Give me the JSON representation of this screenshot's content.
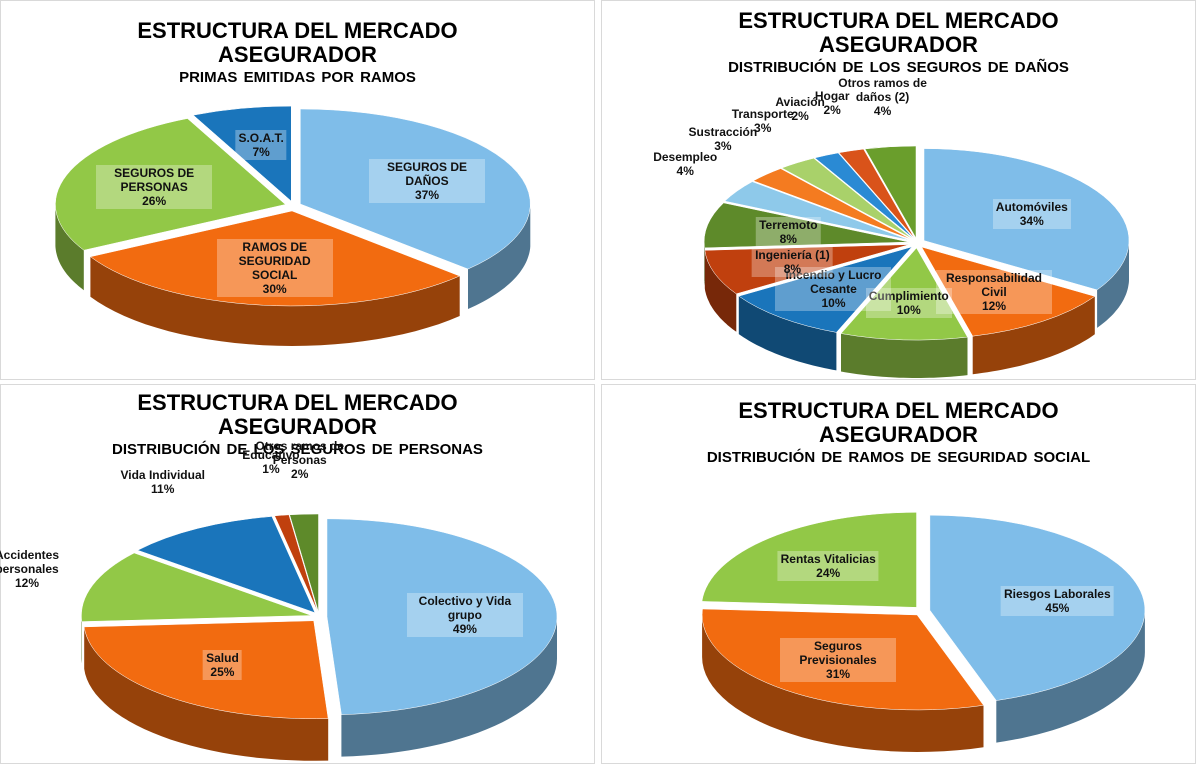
{
  "chart_data": [
    {
      "type": "pie",
      "title": "ESTRUCTURA DEL MERCADO ASEGURADOR",
      "subtitle": "PRIMAS EMITIDAS POR RAMOS",
      "categories": [
        "SEGUROS DE DAÑOS",
        "RAMOS DE SEGURIDAD SOCIAL",
        "SEGUROS DE PERSONAS",
        "S.O.A.T."
      ],
      "values": [
        37,
        30,
        26,
        7
      ],
      "value_labels": [
        "37%",
        "30%",
        "26%",
        "7%"
      ],
      "colors": [
        "#7fbde9",
        "#f26b10",
        "#92c847",
        "#1a75bb"
      ]
    },
    {
      "type": "pie",
      "title": "ESTRUCTURA DEL MERCADO ASEGURADOR",
      "subtitle": "DISTRIBUCIÓN  DE LOS SEGUROS  DE DAÑOS",
      "categories": [
        "Automóviles",
        "Responsabilidad Civil",
        "Cumplimiento",
        "Incendio y Lucro Cesante",
        "Ingeniería (1)",
        "Terremoto",
        "Desempleo",
        "Sustracción",
        "Transporte",
        "Aviación",
        "Hogar",
        "Otros ramos de daños (2)"
      ],
      "values": [
        34,
        12,
        10,
        10,
        8,
        8,
        4,
        3,
        3,
        2,
        2,
        4
      ],
      "value_labels": [
        "34%",
        "12%",
        "10%",
        "10%",
        "8%",
        "8%",
        "4%",
        "3%",
        "3%",
        "2%",
        "2%",
        "4%"
      ],
      "colors": [
        "#7fbde9",
        "#f26b10",
        "#92c847",
        "#1a75bb",
        "#c0400e",
        "#5e8a2a",
        "#8ec9ea",
        "#f47b20",
        "#a9d16a",
        "#2a8ad4",
        "#d9531a",
        "#6a9e2c"
      ]
    },
    {
      "type": "pie",
      "title": "ESTRUCTURA DEL MERCADO ASEGURADOR",
      "subtitle": "DISTRIBUCIÓN  DE LOS SEGUROS DE PERSONAS",
      "categories": [
        "Colectivo y Vida grupo",
        "Salud",
        "Accidentes personales",
        "Vida Individual",
        "Educativo",
        "Otros ramos de Personas"
      ],
      "values": [
        49,
        25,
        12,
        11,
        1,
        2
      ],
      "value_labels": [
        "49%",
        "25%",
        "12%",
        "11%",
        "1%",
        "2%"
      ],
      "colors": [
        "#7fbde9",
        "#f26b10",
        "#92c847",
        "#1a75bb",
        "#c0400e",
        "#5e8a2a"
      ]
    },
    {
      "type": "pie",
      "title": "ESTRUCTURA DEL MERCADO ASEGURADOR",
      "subtitle": "DISTRIBUCIÓN  DE RAMOS DE SEGURIDAD SOCIAL",
      "categories": [
        "Riesgos Laborales",
        "Seguros Previsionales",
        "Rentas Vitalicias"
      ],
      "values": [
        45,
        31,
        24
      ],
      "value_labels": [
        "45%",
        "31%",
        "24%"
      ],
      "colors": [
        "#7fbde9",
        "#f26b10",
        "#92c847"
      ]
    }
  ]
}
